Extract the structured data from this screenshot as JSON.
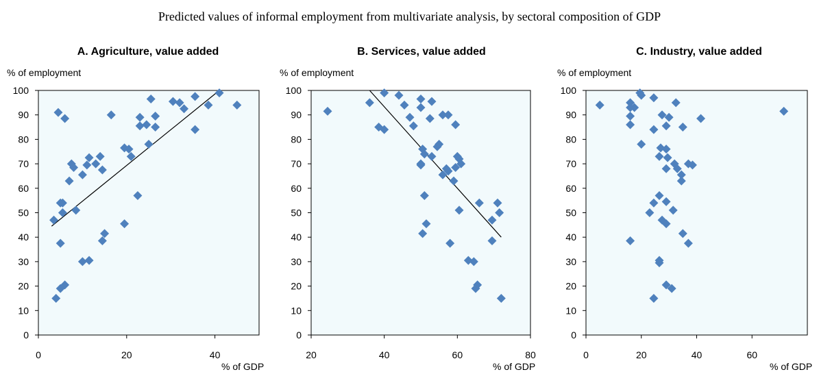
{
  "title": "Predicted values of informal employment from multivariate analysis, by sectoral composition of GDP",
  "colors": {
    "marker": "#4f81bd",
    "plot_bg": "#f2fafc",
    "trend": "#000000"
  },
  "chart_data": [
    {
      "type": "scatter",
      "title": "A. Agriculture, value added",
      "ylabel": "% of employment",
      "xlabel": "% of GDP",
      "xlim": [
        0,
        50
      ],
      "xticks": [
        0,
        20,
        40
      ],
      "ylim": [
        0,
        100
      ],
      "yticks": [
        0,
        10,
        20,
        30,
        40,
        50,
        60,
        70,
        80,
        90,
        100
      ],
      "grid": false,
      "trendline": {
        "x": [
          3,
          41
        ],
        "y": [
          44.5,
          100
        ]
      },
      "points": [
        {
          "x": 4.5,
          "y": 91
        },
        {
          "x": 6,
          "y": 88.5
        },
        {
          "x": 16.5,
          "y": 90
        },
        {
          "x": 25.5,
          "y": 96.5
        },
        {
          "x": 30.5,
          "y": 95.5
        },
        {
          "x": 32,
          "y": 95
        },
        {
          "x": 33,
          "y": 92.5
        },
        {
          "x": 35.5,
          "y": 97.5
        },
        {
          "x": 38.5,
          "y": 94
        },
        {
          "x": 41,
          "y": 99
        },
        {
          "x": 45,
          "y": 94
        },
        {
          "x": 23,
          "y": 89
        },
        {
          "x": 26.5,
          "y": 89.5
        },
        {
          "x": 23,
          "y": 85.5
        },
        {
          "x": 24.5,
          "y": 86
        },
        {
          "x": 26.5,
          "y": 85
        },
        {
          "x": 35.5,
          "y": 84
        },
        {
          "x": 25,
          "y": 78
        },
        {
          "x": 19.5,
          "y": 76.5
        },
        {
          "x": 20.5,
          "y": 76
        },
        {
          "x": 21,
          "y": 73
        },
        {
          "x": 11.5,
          "y": 72.5
        },
        {
          "x": 14,
          "y": 73
        },
        {
          "x": 13,
          "y": 70
        },
        {
          "x": 14.5,
          "y": 67.5
        },
        {
          "x": 7.5,
          "y": 70
        },
        {
          "x": 8,
          "y": 68.5
        },
        {
          "x": 11,
          "y": 69.5
        },
        {
          "x": 10,
          "y": 65.5
        },
        {
          "x": 7,
          "y": 63
        },
        {
          "x": 22.5,
          "y": 57
        },
        {
          "x": 5.5,
          "y": 54
        },
        {
          "x": 5,
          "y": 54
        },
        {
          "x": 8.5,
          "y": 51
        },
        {
          "x": 5.5,
          "y": 50
        },
        {
          "x": 3.5,
          "y": 47
        },
        {
          "x": 19.5,
          "y": 45.5
        },
        {
          "x": 15,
          "y": 41.5
        },
        {
          "x": 14.5,
          "y": 38.5
        },
        {
          "x": 5,
          "y": 37.5
        },
        {
          "x": 10,
          "y": 30
        },
        {
          "x": 11.5,
          "y": 30.5
        },
        {
          "x": 6,
          "y": 20.5
        },
        {
          "x": 5,
          "y": 19
        },
        {
          "x": 4,
          "y": 15
        }
      ]
    },
    {
      "type": "scatter",
      "title": "B. Services, value added",
      "ylabel": "% of employment",
      "xlabel": "% of GDP",
      "xlim": [
        20,
        80
      ],
      "xticks": [
        20,
        40,
        60,
        80
      ],
      "ylim": [
        0,
        100
      ],
      "yticks": [
        0,
        10,
        20,
        30,
        40,
        50,
        60,
        70,
        80,
        90,
        100
      ],
      "grid": false,
      "trendline": {
        "x": [
          36,
          72
        ],
        "y": [
          100,
          40
        ]
      },
      "points": [
        {
          "x": 24.5,
          "y": 91.5
        },
        {
          "x": 36,
          "y": 95
        },
        {
          "x": 40,
          "y": 99
        },
        {
          "x": 44,
          "y": 98
        },
        {
          "x": 45.5,
          "y": 94
        },
        {
          "x": 47,
          "y": 89
        },
        {
          "x": 48,
          "y": 85.5
        },
        {
          "x": 50,
          "y": 96.5
        },
        {
          "x": 50,
          "y": 93
        },
        {
          "x": 53,
          "y": 95.5
        },
        {
          "x": 52.5,
          "y": 88.5
        },
        {
          "x": 56,
          "y": 90
        },
        {
          "x": 57.5,
          "y": 90
        },
        {
          "x": 59.5,
          "y": 86
        },
        {
          "x": 38.5,
          "y": 85
        },
        {
          "x": 40,
          "y": 84
        },
        {
          "x": 54.5,
          "y": 77
        },
        {
          "x": 55,
          "y": 78
        },
        {
          "x": 50.5,
          "y": 76
        },
        {
          "x": 51,
          "y": 74
        },
        {
          "x": 53,
          "y": 73
        },
        {
          "x": 60,
          "y": 73
        },
        {
          "x": 60.5,
          "y": 72
        },
        {
          "x": 50,
          "y": 70
        },
        {
          "x": 50,
          "y": 69.5
        },
        {
          "x": 61,
          "y": 70
        },
        {
          "x": 57,
          "y": 68
        },
        {
          "x": 57.5,
          "y": 67
        },
        {
          "x": 59.5,
          "y": 68.5
        },
        {
          "x": 56,
          "y": 65.5
        },
        {
          "x": 59,
          "y": 63
        },
        {
          "x": 51,
          "y": 57
        },
        {
          "x": 66,
          "y": 54
        },
        {
          "x": 71,
          "y": 54
        },
        {
          "x": 60.5,
          "y": 51
        },
        {
          "x": 71.5,
          "y": 50
        },
        {
          "x": 69.5,
          "y": 47
        },
        {
          "x": 51.5,
          "y": 45.5
        },
        {
          "x": 50.5,
          "y": 41.5
        },
        {
          "x": 58,
          "y": 37.5
        },
        {
          "x": 69.5,
          "y": 38.5
        },
        {
          "x": 63,
          "y": 30.5
        },
        {
          "x": 64.5,
          "y": 30
        },
        {
          "x": 65.5,
          "y": 20.5
        },
        {
          "x": 65,
          "y": 19
        },
        {
          "x": 72,
          "y": 15
        }
      ]
    },
    {
      "type": "scatter",
      "title": "C. Industry, value added",
      "ylabel": "% of employment",
      "xlabel": "% of GDP",
      "xlim": [
        0,
        80
      ],
      "xticks": [
        0,
        20,
        40,
        60
      ],
      "ylim": [
        0,
        100
      ],
      "yticks": [
        0,
        10,
        20,
        30,
        40,
        50,
        60,
        70,
        80,
        90,
        100
      ],
      "grid": false,
      "points": [
        {
          "x": 5,
          "y": 94
        },
        {
          "x": 16,
          "y": 95
        },
        {
          "x": 16,
          "y": 93
        },
        {
          "x": 17.5,
          "y": 93
        },
        {
          "x": 19.5,
          "y": 99
        },
        {
          "x": 20,
          "y": 98
        },
        {
          "x": 24.5,
          "y": 97
        },
        {
          "x": 32.5,
          "y": 95
        },
        {
          "x": 16,
          "y": 89.5
        },
        {
          "x": 16,
          "y": 86
        },
        {
          "x": 27.5,
          "y": 90
        },
        {
          "x": 30,
          "y": 89
        },
        {
          "x": 41.5,
          "y": 88.5
        },
        {
          "x": 71.5,
          "y": 91.5
        },
        {
          "x": 29,
          "y": 85.5
        },
        {
          "x": 24.5,
          "y": 84
        },
        {
          "x": 35,
          "y": 85
        },
        {
          "x": 20,
          "y": 78
        },
        {
          "x": 27,
          "y": 76.5
        },
        {
          "x": 29,
          "y": 76
        },
        {
          "x": 26.5,
          "y": 73
        },
        {
          "x": 29.5,
          "y": 72.5
        },
        {
          "x": 32,
          "y": 70
        },
        {
          "x": 37,
          "y": 70
        },
        {
          "x": 33,
          "y": 68
        },
        {
          "x": 38.5,
          "y": 69.5
        },
        {
          "x": 29,
          "y": 68
        },
        {
          "x": 34.5,
          "y": 65.5
        },
        {
          "x": 34.5,
          "y": 63
        },
        {
          "x": 26.5,
          "y": 57
        },
        {
          "x": 24.5,
          "y": 54
        },
        {
          "x": 29,
          "y": 54.5
        },
        {
          "x": 31.5,
          "y": 51
        },
        {
          "x": 23,
          "y": 50
        },
        {
          "x": 27.5,
          "y": 47
        },
        {
          "x": 29,
          "y": 45.5
        },
        {
          "x": 35,
          "y": 41.5
        },
        {
          "x": 16,
          "y": 38.5
        },
        {
          "x": 37,
          "y": 37.5
        },
        {
          "x": 26.5,
          "y": 30.5
        },
        {
          "x": 26.5,
          "y": 29.5
        },
        {
          "x": 29,
          "y": 20.5
        },
        {
          "x": 31,
          "y": 19
        },
        {
          "x": 24.5,
          "y": 15
        }
      ]
    }
  ]
}
